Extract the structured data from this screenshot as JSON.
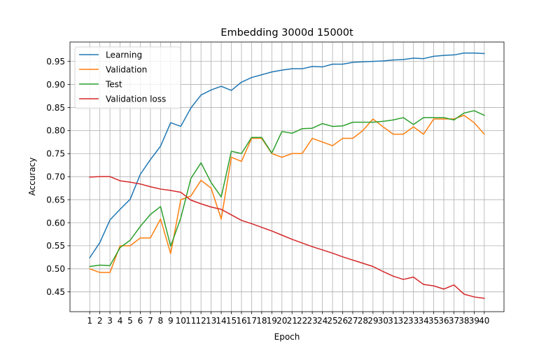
{
  "chart_data": {
    "type": "line",
    "title": "Embedding 3000d 15000t",
    "xlabel": "Epoch",
    "ylabel": "Accuracy",
    "x": [
      1,
      2,
      3,
      4,
      5,
      6,
      7,
      8,
      9,
      10,
      11,
      12,
      13,
      14,
      15,
      16,
      17,
      18,
      19,
      20,
      21,
      22,
      23,
      24,
      25,
      26,
      27,
      28,
      29,
      30,
      31,
      32,
      33,
      34,
      35,
      36,
      37,
      38,
      39,
      40
    ],
    "xlim": [
      -0.95,
      41.95
    ],
    "ylim": [
      0.407,
      0.992
    ],
    "yticks": [
      0.45,
      0.5,
      0.55,
      0.6,
      0.65,
      0.7,
      0.75,
      0.8,
      0.85,
      0.9,
      0.95
    ],
    "grid": true,
    "legend_position": "upper-left",
    "series": [
      {
        "name": "Learning",
        "color": "#1f77b4",
        "values": [
          0.524,
          0.557,
          0.606,
          0.629,
          0.651,
          0.705,
          0.737,
          0.766,
          0.817,
          0.809,
          0.849,
          0.877,
          0.888,
          0.896,
          0.887,
          0.905,
          0.915,
          0.921,
          0.927,
          0.931,
          0.934,
          0.934,
          0.939,
          0.938,
          0.944,
          0.944,
          0.948,
          0.949,
          0.95,
          0.951,
          0.953,
          0.954,
          0.957,
          0.956,
          0.961,
          0.963,
          0.964,
          0.968,
          0.968,
          0.967
        ]
      },
      {
        "name": "Validation",
        "color": "#ff7f0e",
        "values": [
          0.5,
          0.492,
          0.492,
          0.55,
          0.55,
          0.567,
          0.567,
          0.608,
          0.533,
          0.65,
          0.658,
          0.692,
          0.675,
          0.608,
          0.742,
          0.733,
          0.783,
          0.783,
          0.75,
          0.742,
          0.75,
          0.75,
          0.783,
          0.775,
          0.767,
          0.783,
          0.783,
          0.8,
          0.825,
          0.808,
          0.792,
          0.792,
          0.808,
          0.792,
          0.825,
          0.825,
          0.825,
          0.833,
          0.817,
          0.792
        ]
      },
      {
        "name": "Test",
        "color": "#2ca02c",
        "values": [
          0.505,
          0.508,
          0.507,
          0.546,
          0.562,
          0.592,
          0.618,
          0.635,
          0.549,
          0.61,
          0.696,
          0.73,
          0.687,
          0.656,
          0.755,
          0.75,
          0.785,
          0.785,
          0.751,
          0.798,
          0.794,
          0.804,
          0.805,
          0.815,
          0.809,
          0.81,
          0.818,
          0.818,
          0.818,
          0.82,
          0.823,
          0.828,
          0.813,
          0.828,
          0.828,
          0.828,
          0.823,
          0.838,
          0.843,
          0.833
        ]
      },
      {
        "name": "Validation loss",
        "color": "#d62728",
        "values": [
          0.699,
          0.7,
          0.7,
          0.691,
          0.688,
          0.684,
          0.678,
          0.673,
          0.67,
          0.666,
          0.649,
          0.641,
          0.634,
          0.629,
          0.617,
          0.605,
          0.598,
          0.59,
          0.582,
          0.573,
          0.564,
          0.556,
          0.548,
          0.541,
          0.534,
          0.526,
          0.519,
          0.512,
          0.505,
          0.494,
          0.484,
          0.477,
          0.482,
          0.466,
          0.463,
          0.456,
          0.465,
          0.445,
          0.439,
          0.436
        ]
      }
    ]
  }
}
